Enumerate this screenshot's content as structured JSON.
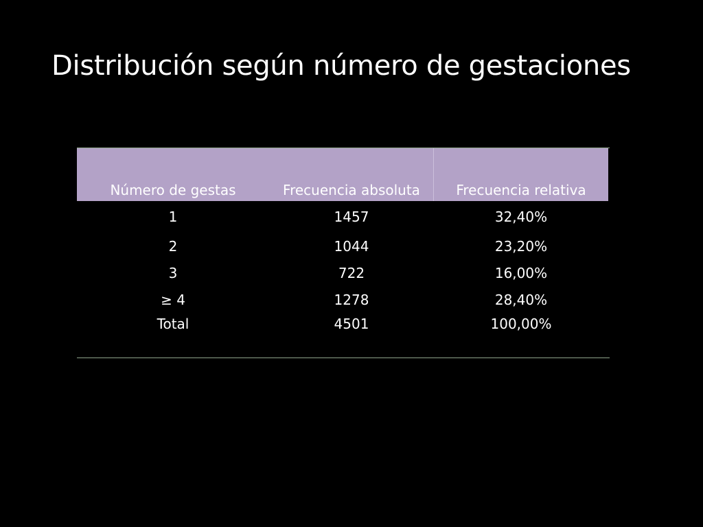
{
  "slide": {
    "title": "Distribución según número de gestaciones"
  },
  "table": {
    "headers": [
      "Número de gestas",
      "Frecuencia absoluta",
      "Frecuencia relativa"
    ],
    "rows": [
      [
        "1",
        "1457",
        "32,40%"
      ],
      [
        "2",
        "1044",
        "23,20%"
      ],
      [
        "3",
        "722",
        "16,00%"
      ],
      [
        "≥ 4",
        "1278",
        "28,40%"
      ],
      [
        "Total",
        "4501",
        "100,00%"
      ]
    ]
  },
  "colors": {
    "background": "#000000",
    "header_fill": "#b3a2c7",
    "rule": "#8fa58c",
    "text": "#ffffff"
  }
}
